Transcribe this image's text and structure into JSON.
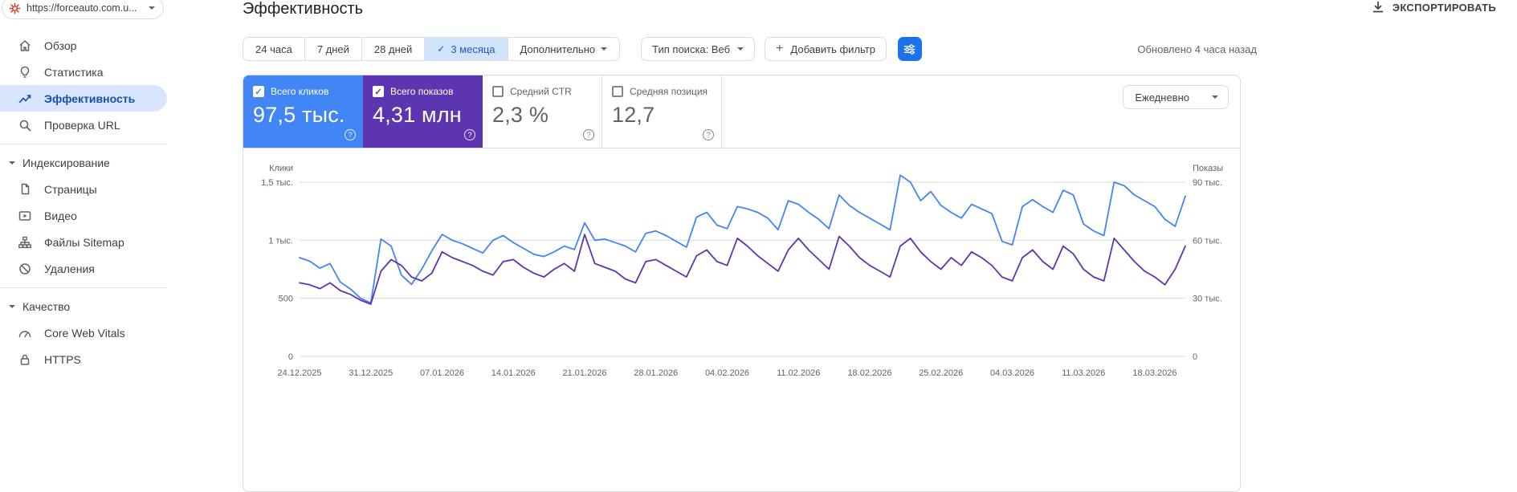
{
  "icons": {
    "check": "✓",
    "plus": "+",
    "question": "?"
  },
  "sidebar": {
    "property_url": "https://forceauto.com.u...",
    "sections": [
      {
        "items": [
          {
            "label": "Обзор"
          },
          {
            "label": "Статистика"
          },
          {
            "label": "Эффективность"
          },
          {
            "label": "Проверка URL"
          }
        ]
      },
      {
        "header": "Индексирование",
        "items": [
          {
            "label": "Страницы"
          },
          {
            "label": "Видео"
          },
          {
            "label": "Файлы Sitemap"
          },
          {
            "label": "Удаления"
          }
        ]
      },
      {
        "header": "Качество",
        "items": [
          {
            "label": "Core Web Vitals"
          },
          {
            "label": "HTTPS"
          }
        ]
      }
    ]
  },
  "header": {
    "title": "Эффективность",
    "export_label": "ЭКСПОРТИРОВАТЬ",
    "updated": "Обновлено 4 часа назад"
  },
  "filters": {
    "date_ranges": [
      {
        "label": "24 часа",
        "selected": false
      },
      {
        "label": "7 дней",
        "selected": false
      },
      {
        "label": "28 дней",
        "selected": false
      },
      {
        "label": "3 месяца",
        "selected": true
      },
      {
        "label": "Дополнительно",
        "selected": false
      }
    ],
    "search_type_label": "Тип поиска: Веб",
    "add_filter_label": "Добавить фильтр"
  },
  "metrics": {
    "granularity": "Ежедневно",
    "cards": [
      {
        "label": "Всего кликов",
        "value": "97,5 тыс.",
        "checked": true,
        "color": "#4285f4"
      },
      {
        "label": "Всего показов",
        "value": "4,31 млн",
        "checked": true,
        "color": "#5e35b1"
      },
      {
        "label": "Средний CTR",
        "value": "2,3 %",
        "checked": false
      },
      {
        "label": "Средняя позиция",
        "value": "12,7",
        "checked": false
      }
    ]
  },
  "chart_data": {
    "type": "line",
    "x_tick_labels": [
      "24.12.2025",
      "31.12.2025",
      "07.01.2026",
      "14.01.2026",
      "21.01.2026",
      "28.01.2026",
      "04.02.2026",
      "11.02.2026",
      "18.02.2026",
      "25.02.2026",
      "04.03.2026",
      "11.03.2026",
      "18.03.2026"
    ],
    "x_tick_every": 7,
    "left_axis": {
      "label": "Клики",
      "max": 1500,
      "tick_values": [
        1500,
        1000,
        500,
        0
      ],
      "tick_labels": [
        "1,5 тыс.",
        "1 тыс.",
        "500",
        "0"
      ]
    },
    "right_axis": {
      "label": "Показы",
      "max": 90,
      "tick_labels": [
        "90 тыс.",
        "60 тыс.",
        "30 тыс.",
        "0"
      ]
    },
    "legend_position": "none",
    "grid": true,
    "series": [
      {
        "name": "Клики",
        "axis": "left",
        "color": "#4285f4",
        "values": [
          850,
          820,
          760,
          800,
          640,
          580,
          500,
          460,
          1010,
          950,
          700,
          620,
          750,
          910,
          1050,
          1000,
          970,
          930,
          890,
          1000,
          1040,
          980,
          930,
          880,
          860,
          900,
          950,
          920,
          1150,
          1000,
          1010,
          980,
          950,
          900,
          1060,
          1080,
          1040,
          990,
          940,
          1200,
          1240,
          1130,
          1100,
          1290,
          1270,
          1240,
          1190,
          1090,
          1340,
          1310,
          1240,
          1180,
          1100,
          1390,
          1300,
          1240,
          1190,
          1140,
          1090,
          1560,
          1500,
          1340,
          1420,
          1300,
          1240,
          1190,
          1310,
          1270,
          1230,
          990,
          960,
          1290,
          1350,
          1290,
          1240,
          1430,
          1390,
          1140,
          1080,
          1040,
          1500,
          1470,
          1390,
          1340,
          1290,
          1180,
          1120,
          1380
        ]
      },
      {
        "name": "Показы",
        "axis": "right",
        "color": "#5e35b1",
        "values": [
          38,
          37,
          35,
          38,
          34,
          32,
          29,
          27,
          44,
          50,
          47,
          41,
          39,
          43,
          54,
          51,
          49,
          47,
          44,
          42,
          49,
          50,
          46,
          43,
          41,
          45,
          48,
          44,
          63,
          48,
          46,
          44,
          40,
          38,
          49,
          50,
          47,
          44,
          41,
          52,
          55,
          49,
          47,
          61,
          57,
          52,
          48,
          44,
          55,
          61,
          55,
          50,
          45,
          62,
          57,
          51,
          47,
          44,
          41,
          57,
          61,
          54,
          49,
          45,
          51,
          47,
          54,
          51,
          47,
          41,
          39,
          51,
          55,
          49,
          45,
          57,
          53,
          45,
          41,
          39,
          61,
          55,
          49,
          44,
          41,
          37,
          45,
          57
        ]
      }
    ]
  }
}
